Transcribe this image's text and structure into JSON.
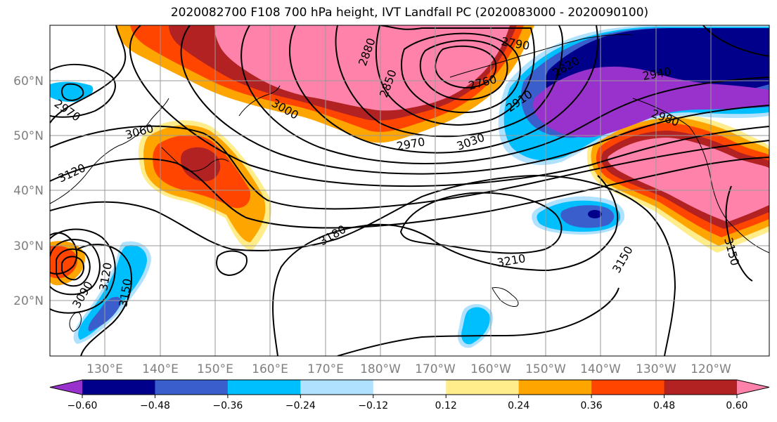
{
  "title": "2020082700 F108 700 hPa height, IVT Landfall PC (2020083000 - 2020090100)",
  "map": {
    "latitude_labels": [
      "60°N",
      "50°N",
      "40°N",
      "30°N",
      "20°N"
    ],
    "longitude_labels": [
      "130°E",
      "140°E",
      "150°E",
      "160°E",
      "170°E",
      "180°W",
      "170°W",
      "160°W",
      "150°W",
      "140°W",
      "130°W",
      "120°W"
    ],
    "contour_labels": [
      "2790",
      "2880",
      "2850",
      "2760",
      "2820",
      "2910",
      "2940",
      "2980",
      "2970",
      "3000",
      "3030",
      "2970",
      "3060",
      "3120",
      "3180",
      "3210",
      "3150",
      "3150",
      "3090",
      "3120",
      "3150"
    ]
  },
  "colorbar": {
    "ticks": [
      "−0.60",
      "−0.48",
      "−0.36",
      "−0.24",
      "−0.12",
      "0.12",
      "0.24",
      "0.36",
      "0.48",
      "0.60"
    ],
    "colors": [
      "#9932cc",
      "#00008b",
      "#3a5fcd",
      "#00bfff",
      "#b0e2ff",
      "#ffffff",
      "#ffec8b",
      "#ffa500",
      "#ff4500",
      "#b22222",
      "#ff82ab"
    ]
  }
}
